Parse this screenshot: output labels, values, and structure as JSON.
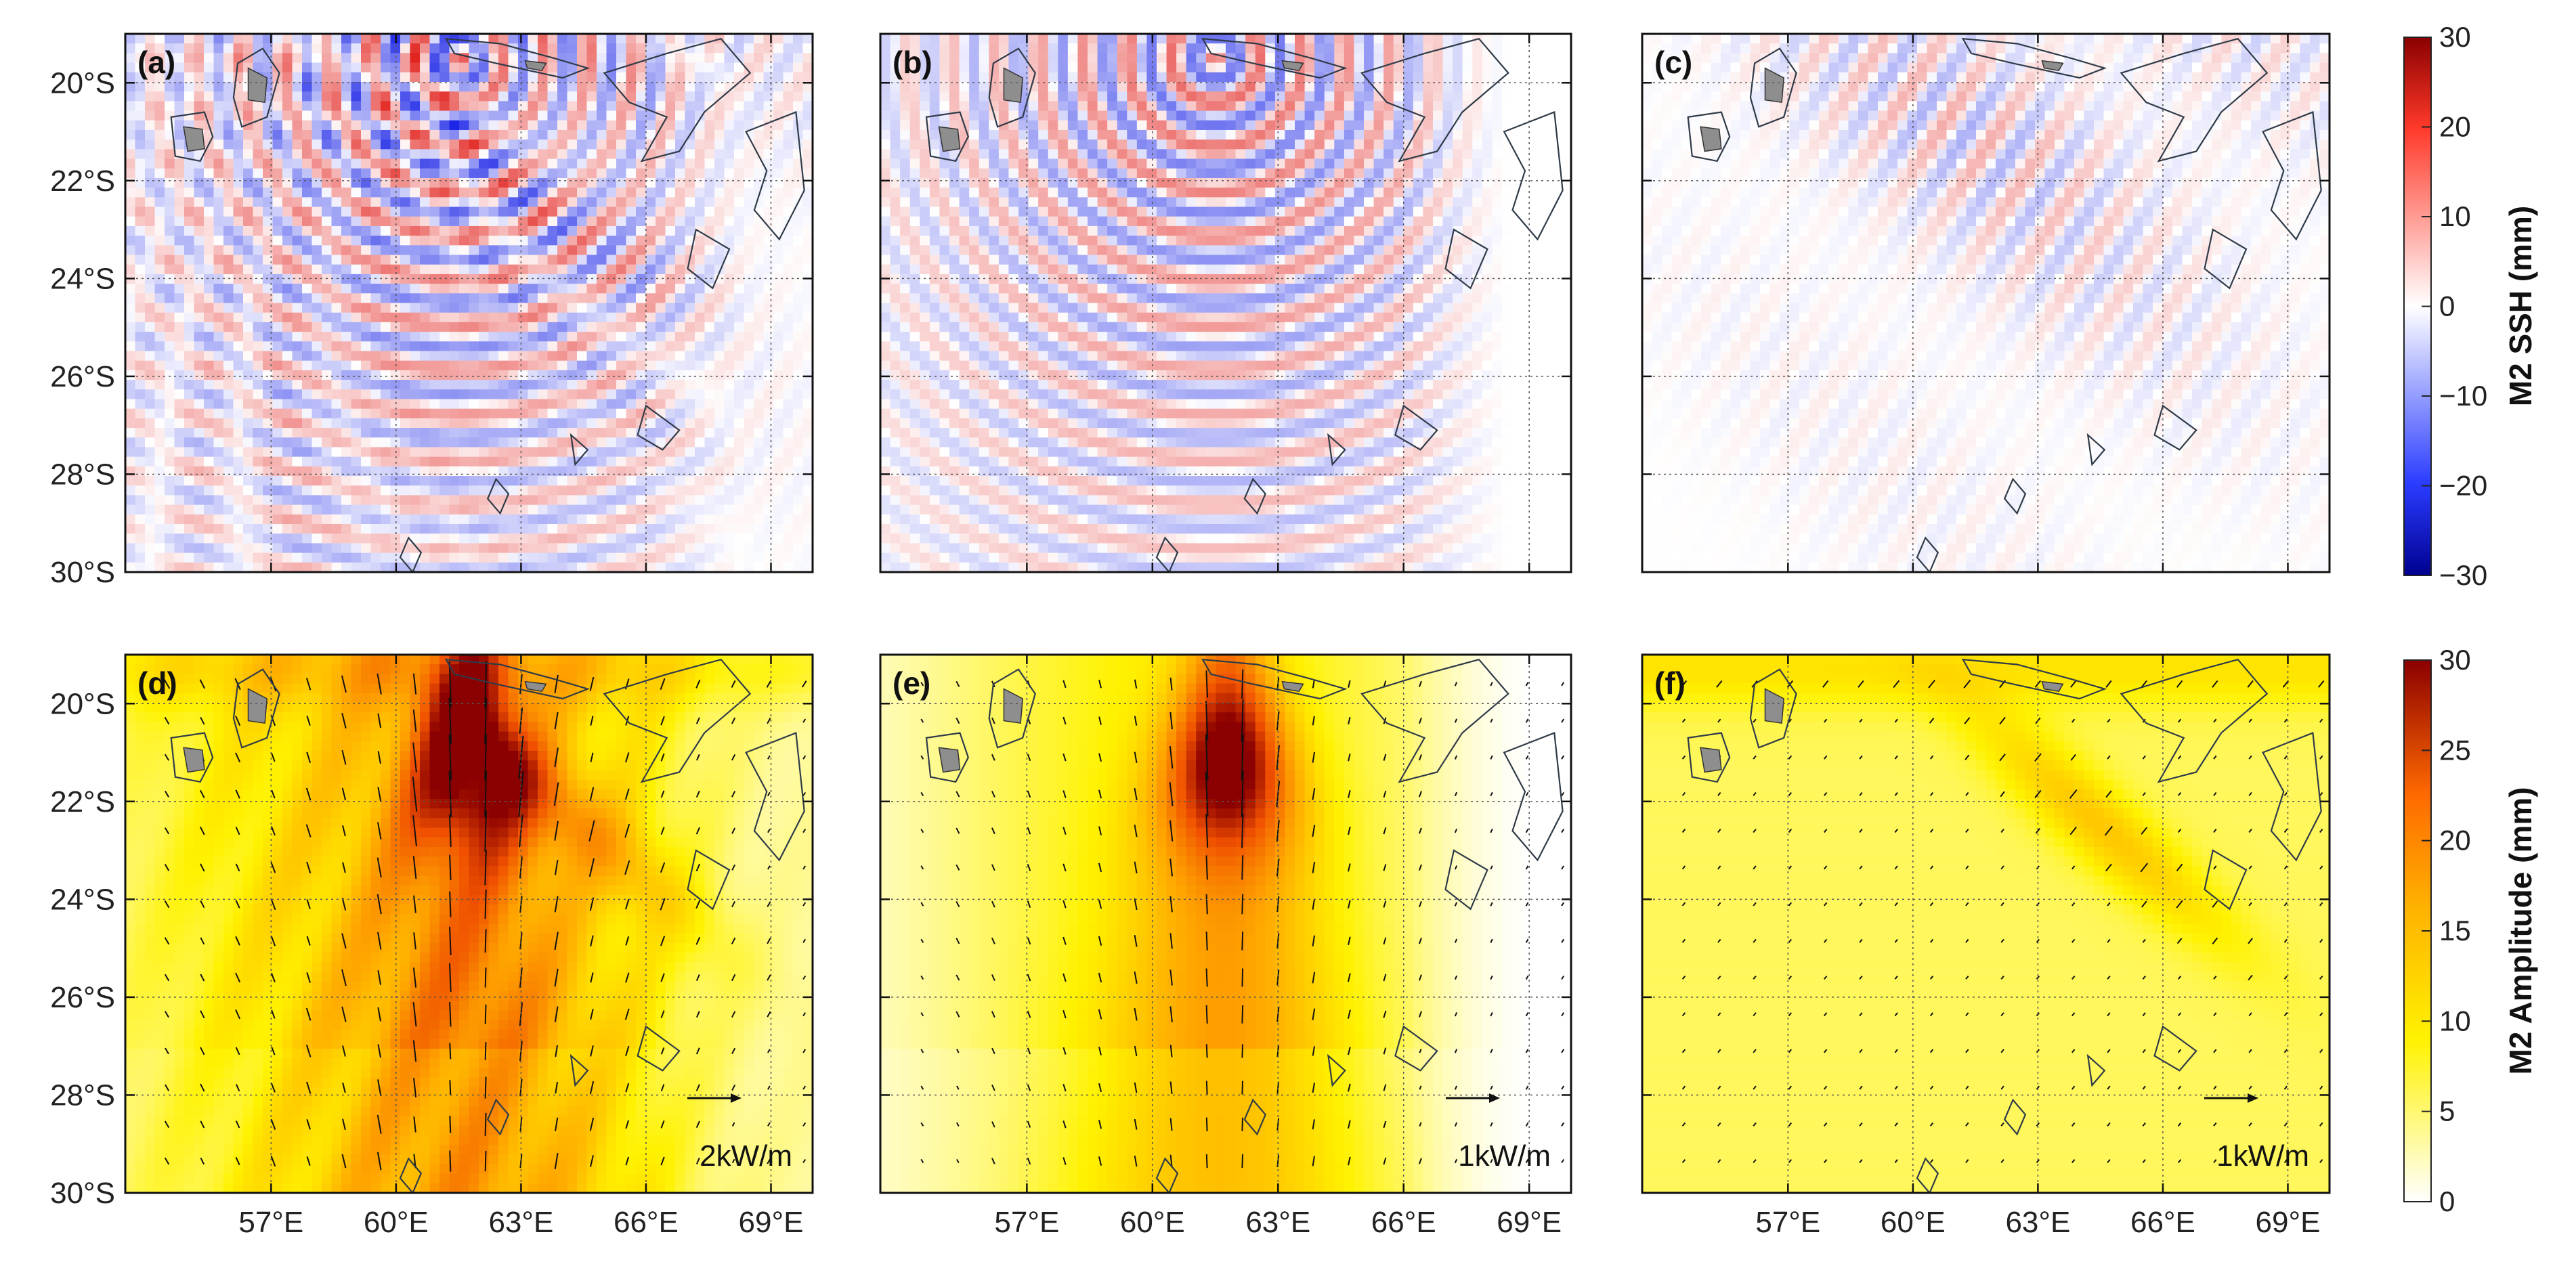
{
  "chart_data": {
    "type": "heatmap",
    "description_units": {
      "lon": "degrees E",
      "lat": "degrees S"
    },
    "lon_range": [
      53.5,
      70.0
    ],
    "lat_range": [
      -30.0,
      -19.0
    ],
    "lon_ticks": [
      57,
      60,
      63,
      66,
      69
    ],
    "lat_ticks": [
      -20,
      -22,
      -24,
      -26,
      -28,
      -30
    ],
    "lon_tick_labels": [
      "57°E",
      "60°E",
      "63°E",
      "66°E",
      "69°E"
    ],
    "lat_tick_labels": [
      "20°S",
      "22°S",
      "24°S",
      "26°S",
      "28°S",
      "30°S"
    ],
    "grid": "dotted",
    "panels": [
      {
        "id": "a",
        "label": "(a)",
        "field": "M2 SSH",
        "pattern": "interference"
      },
      {
        "id": "b",
        "label": "(b)",
        "field": "M2 SSH",
        "pattern": "southward beam"
      },
      {
        "id": "c",
        "label": "(c)",
        "field": "M2 SSH",
        "pattern": "southeastward beam"
      },
      {
        "id": "d",
        "label": "(d)",
        "field": "M2 Amplitude",
        "arrow_label": "2kW/m",
        "arrow_ref": 2
      },
      {
        "id": "e",
        "label": "(e)",
        "field": "M2 Amplitude",
        "arrow_label": "1kW/m",
        "arrow_ref": 1
      },
      {
        "id": "f",
        "label": "(f)",
        "field": "M2 Amplitude",
        "arrow_label": "1kW/m",
        "arrow_ref": 1
      }
    ],
    "colorbars": [
      {
        "title": "M2 SSH (mm)",
        "range": [
          -30,
          30
        ],
        "ticks": [
          "30",
          "20",
          "10",
          "0",
          "−10",
          "−20",
          "−30"
        ],
        "colormap": "blue-white-red"
      },
      {
        "title": "M2 Amplitude (mm)",
        "range": [
          0,
          30
        ],
        "ticks": [
          "30",
          "25",
          "20",
          "15",
          "10",
          "5",
          "0"
        ],
        "colormap": "white-yellow-orange-darkred"
      }
    ]
  },
  "colors": {
    "ssh_low": "#00008f",
    "ssh_mid": "#ffffff",
    "ssh_high": "#8b0000",
    "amp_low": "#ffffff",
    "amp_yellow": "#fff200",
    "amp_orange": "#ff8c00",
    "amp_high": "#8b0000",
    "contour": "#2f3b48",
    "island": "#8e8e8e"
  }
}
